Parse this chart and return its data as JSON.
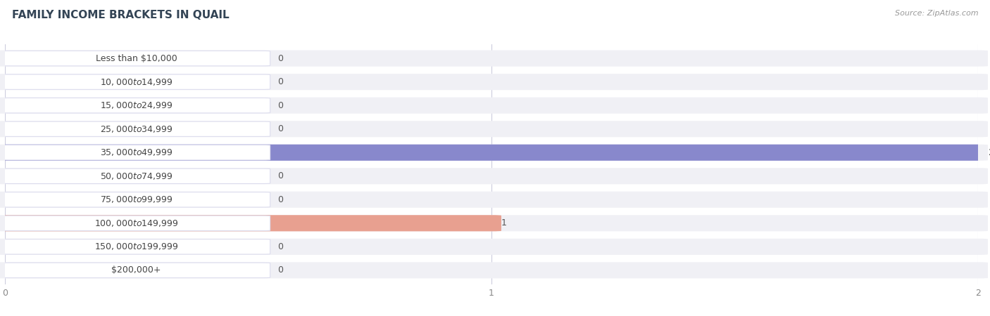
{
  "title": "FAMILY INCOME BRACKETS IN QUAIL",
  "source": "Source: ZipAtlas.com",
  "categories": [
    "Less than $10,000",
    "$10,000 to $14,999",
    "$15,000 to $24,999",
    "$25,000 to $34,999",
    "$35,000 to $49,999",
    "$50,000 to $74,999",
    "$75,000 to $99,999",
    "$100,000 to $149,999",
    "$150,000 to $199,999",
    "$200,000+"
  ],
  "values": [
    0,
    0,
    0,
    0,
    2,
    0,
    0,
    1,
    0,
    0
  ],
  "bar_colors": [
    "#f0a0a0",
    "#a8c4e4",
    "#c4a8d4",
    "#70c8c0",
    "#8888cc",
    "#f4a0c0",
    "#f0d090",
    "#e8a090",
    "#a0bce0",
    "#c8b4d8"
  ],
  "label_bg_colors": [
    "#fde8e8",
    "#ddeeff",
    "#ecddf8",
    "#cceee8",
    "#ddddf8",
    "#fddde8",
    "#feeedd",
    "#fde8e4",
    "#ddeeff",
    "#eeddf8"
  ],
  "xlim": [
    0,
    2
  ],
  "xticks": [
    0,
    1,
    2
  ],
  "background_color": "#ffffff",
  "row_bg_color": "#f0f0f5",
  "title_fontsize": 11,
  "label_fontsize": 9,
  "value_fontsize": 9
}
